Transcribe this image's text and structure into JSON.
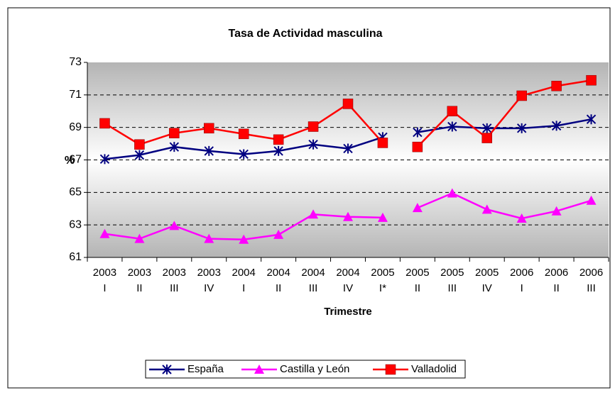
{
  "chart_data": {
    "type": "line",
    "title": "Tasa de Actividad masculina",
    "x_label": "Trimestre",
    "y_label": "%",
    "categories": [
      "2003 I",
      "2003 II",
      "2003 III",
      "2003 IV",
      "2004 I",
      "2004 II",
      "2004 III",
      "2004 IV",
      "2005 I*",
      "2005 II",
      "2005 III",
      "2005 IV",
      "2006 I",
      "2006 II",
      "2006 III"
    ],
    "series": [
      {
        "name": "España",
        "color": "#000080",
        "marker": "star",
        "values": [
          67.05,
          67.3,
          67.8,
          67.55,
          67.35,
          67.55,
          67.95,
          67.7,
          68.4,
          68.7,
          69.05,
          68.95,
          68.95,
          69.1,
          69.5
        ]
      },
      {
        "name": "Castilla y León",
        "color": "#FF00FF",
        "marker": "triangle",
        "values": [
          62.45,
          62.15,
          62.95,
          62.15,
          62.1,
          62.4,
          63.65,
          63.5,
          63.45,
          64.05,
          64.95,
          63.95,
          63.4,
          63.85,
          64.5
        ]
      },
      {
        "name": "Valladolid",
        "color": "#FF0000",
        "marker": "square",
        "values": [
          69.25,
          67.95,
          68.65,
          68.95,
          68.6,
          68.25,
          69.05,
          70.45,
          68.05,
          67.8,
          70.0,
          68.35,
          70.95,
          71.55,
          71.9
        ]
      }
    ],
    "line_breaks_after": [
      8
    ],
    "ylim": [
      61,
      73
    ],
    "yticks": [
      61,
      63,
      65,
      67,
      69,
      71,
      73
    ],
    "grid": true,
    "legend": "bottom"
  }
}
